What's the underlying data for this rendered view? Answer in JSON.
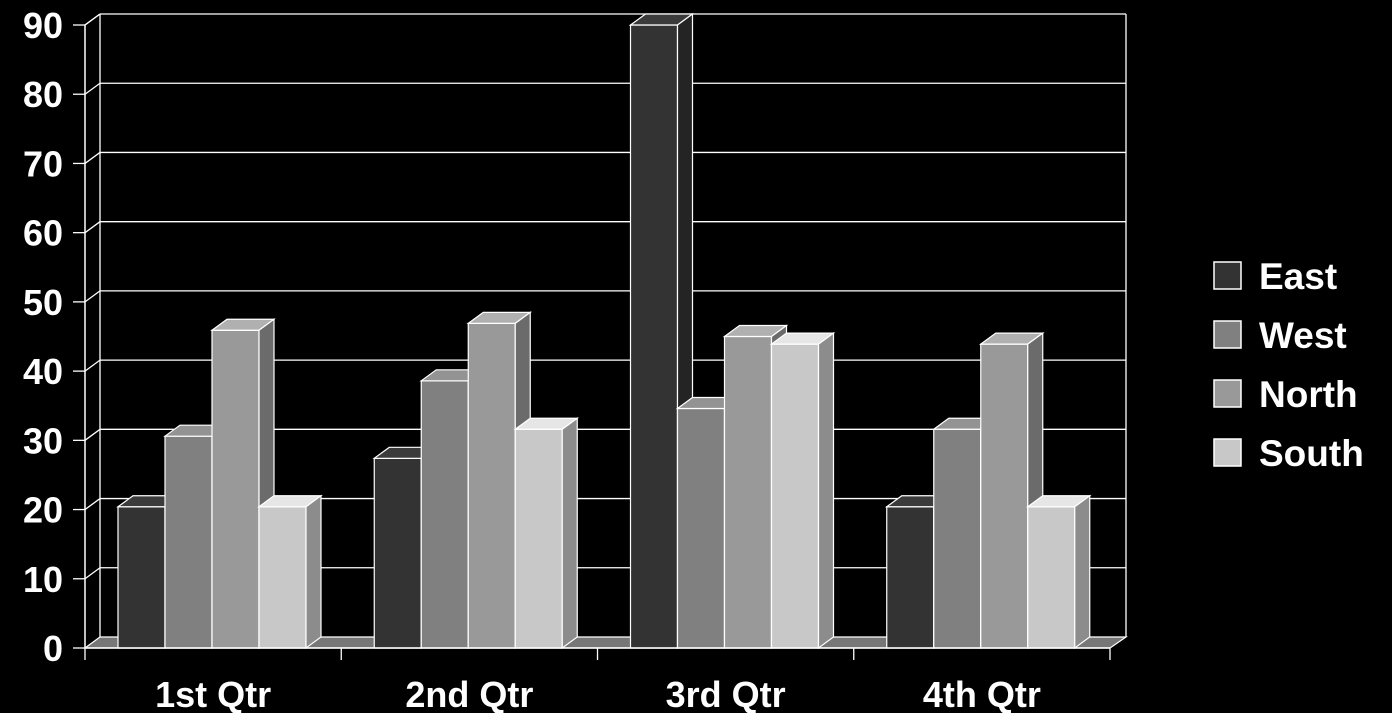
{
  "chart_data": {
    "type": "bar",
    "title": "",
    "xlabel": "",
    "ylabel": "",
    "categories": [
      "1st Qtr",
      "2nd Qtr",
      "3rd Qtr",
      "4th Qtr"
    ],
    "series": [
      {
        "name": "East",
        "values": [
          20.4,
          27.4,
          90,
          20.4
        ],
        "color": "#333333"
      },
      {
        "name": "West",
        "values": [
          30.6,
          38.6,
          34.6,
          31.6
        ],
        "color": "#808080"
      },
      {
        "name": "North",
        "values": [
          45.9,
          46.9,
          45,
          43.9
        ],
        "color": "#999999"
      },
      {
        "name": "South",
        "values": [
          20.4,
          31.6,
          43.9,
          20.4
        ],
        "color": "#c8c8c8"
      }
    ],
    "ylim": [
      0,
      90
    ],
    "yticks": [
      "0",
      "10",
      "20",
      "30",
      "40",
      "50",
      "60",
      "70",
      "80",
      "90"
    ],
    "grid": true,
    "three_d": true,
    "legend_position": "right",
    "background": "#000000",
    "gridline_color": "#ffffff"
  }
}
